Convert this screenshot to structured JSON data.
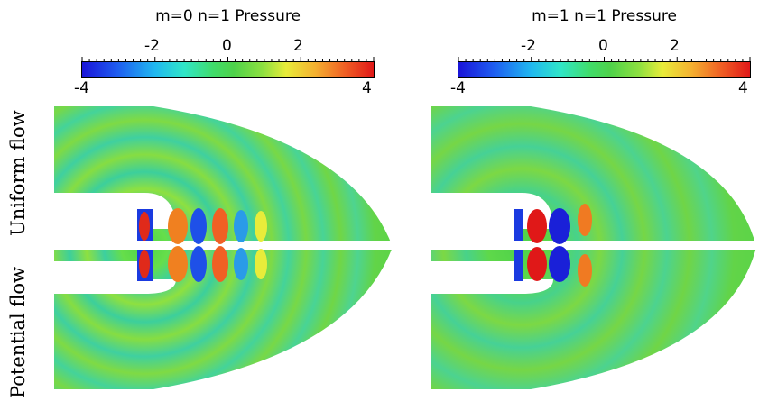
{
  "panels": [
    {
      "title": "m=0 n=1 Pressure"
    },
    {
      "title": "m=1 n=1 Pressure"
    }
  ],
  "colorbar": {
    "min_label": "-4",
    "max_label": "4",
    "tick_labels": [
      "-2",
      "0",
      "2"
    ]
  },
  "row_labels": {
    "top": "Uniform flow",
    "bottom": "Potential flow"
  },
  "colors": {
    "background": "#4ed24a",
    "low": "#1a14d8",
    "high": "#e01818"
  }
}
